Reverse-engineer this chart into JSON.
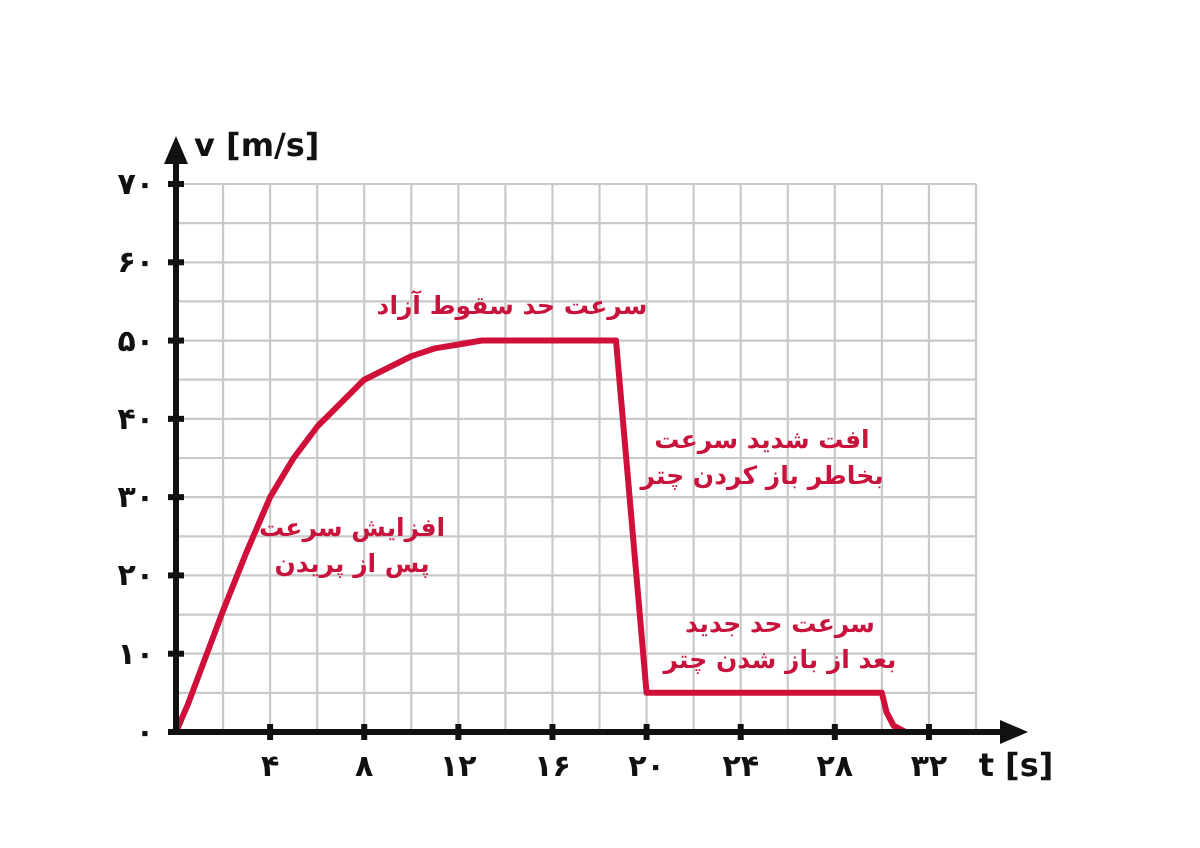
{
  "chart_data": {
    "type": "line",
    "xlabel": "t [s]",
    "ylabel": "v [m/s]",
    "x": [
      0,
      0.5,
      1,
      1.5,
      2,
      3,
      4,
      5,
      6,
      7,
      8,
      9,
      10,
      11,
      12,
      13,
      18.7,
      20,
      30,
      30.2,
      30.5,
      31
    ],
    "series": [
      {
        "color": "#d0103a",
        "values": [
          0,
          3.5,
          7.5,
          11.5,
          15.5,
          23,
          30,
          35,
          39,
          42,
          45,
          46.5,
          48,
          49,
          49.5,
          50,
          50,
          5,
          5,
          2.5,
          0.8,
          0
        ]
      }
    ],
    "xlim": [
      0,
      34
    ],
    "ylim": [
      0,
      70
    ],
    "xticks": [
      {
        "value": 0,
        "label": null
      },
      {
        "value": 2,
        "label": null
      },
      {
        "value": 4,
        "label": "۴"
      },
      {
        "value": 6,
        "label": null
      },
      {
        "value": 8,
        "label": "۸"
      },
      {
        "value": 10,
        "label": null
      },
      {
        "value": 12,
        "label": "۱۲"
      },
      {
        "value": 14,
        "label": null
      },
      {
        "value": 16,
        "label": "۱۶"
      },
      {
        "value": 18,
        "label": null
      },
      {
        "value": 20,
        "label": "۲۰"
      },
      {
        "value": 22,
        "label": null
      },
      {
        "value": 24,
        "label": "۲۴"
      },
      {
        "value": 26,
        "label": null
      },
      {
        "value": 28,
        "label": "۲۸"
      },
      {
        "value": 30,
        "label": null
      },
      {
        "value": 32,
        "label": "۳۲"
      },
      {
        "value": 34,
        "label": null
      }
    ],
    "yticks": [
      {
        "value": 0,
        "label": "۰"
      },
      {
        "value": 5,
        "label": null
      },
      {
        "value": 10,
        "label": "۱۰"
      },
      {
        "value": 15,
        "label": null
      },
      {
        "value": 20,
        "label": "۲۰"
      },
      {
        "value": 25,
        "label": null
      },
      {
        "value": 30,
        "label": "۳۰"
      },
      {
        "value": 35,
        "label": null
      },
      {
        "value": 40,
        "label": "۴۰"
      },
      {
        "value": 45,
        "label": null
      },
      {
        "value": 50,
        "label": "۵۰"
      },
      {
        "value": 55,
        "label": null
      },
      {
        "value": 60,
        "label": "۶۰"
      },
      {
        "value": 65,
        "label": null
      },
      {
        "value": 70,
        "label": "۷۰"
      }
    ],
    "grid": true,
    "annotations": [
      "سرعت حد سقوط آزاد",
      "افزایش سرعت\nپس از پریدن",
      "افت شدید سرعت\nبخاطر باز کردن چتر",
      "سرعت حد جدید\nبعد از باز شدن چتر"
    ]
  }
}
